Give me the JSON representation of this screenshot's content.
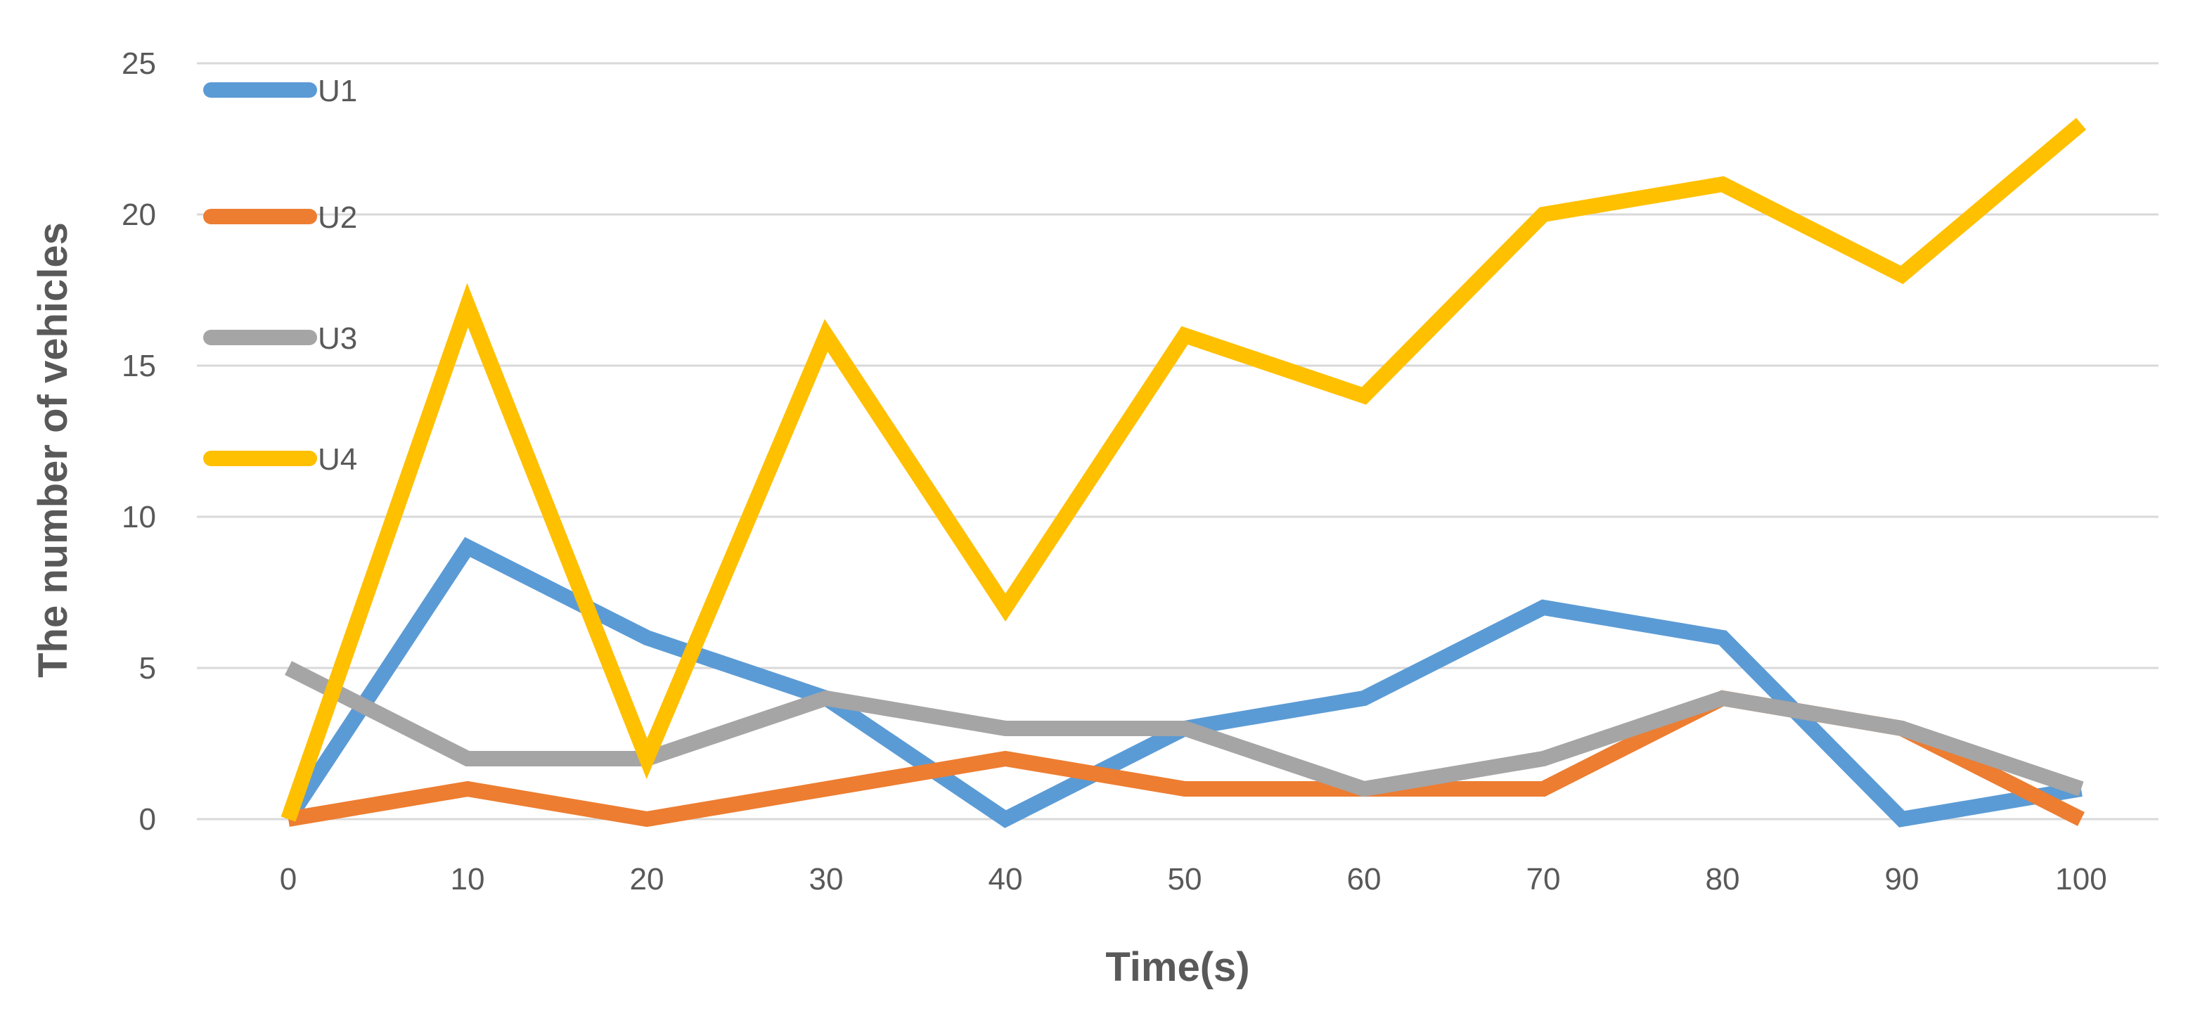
{
  "chart_data": {
    "type": "line",
    "title": "",
    "xlabel": "Time(s)",
    "ylabel": "The number of vehicles",
    "categories": [
      "0",
      "10",
      "20",
      "30",
      "40",
      "50",
      "60",
      "70",
      "80",
      "90",
      "100"
    ],
    "x": [
      0,
      10,
      20,
      30,
      40,
      50,
      60,
      70,
      80,
      90,
      100
    ],
    "ylim": [
      0,
      25
    ],
    "yticks": [
      "0",
      "5",
      "10",
      "15",
      "20",
      "25"
    ],
    "grid": true,
    "legend_position": "top-left",
    "series": [
      {
        "name": "U1",
        "color": "#5b9bd5",
        "values": [
          0,
          9,
          6,
          4,
          0,
          3,
          4,
          7,
          6,
          0,
          1
        ]
      },
      {
        "name": "U2",
        "color": "#ed7d31",
        "values": [
          0,
          1,
          0,
          1,
          2,
          1,
          1,
          1,
          4,
          3,
          0
        ]
      },
      {
        "name": "U3",
        "color": "#a5a5a5",
        "values": [
          5,
          2,
          2,
          4,
          3,
          3,
          1,
          2,
          4,
          3,
          1
        ]
      },
      {
        "name": "U4",
        "color": "#ffc000",
        "values": [
          0,
          17,
          2,
          16,
          7,
          16,
          14,
          20,
          21,
          18,
          23
        ]
      }
    ]
  }
}
